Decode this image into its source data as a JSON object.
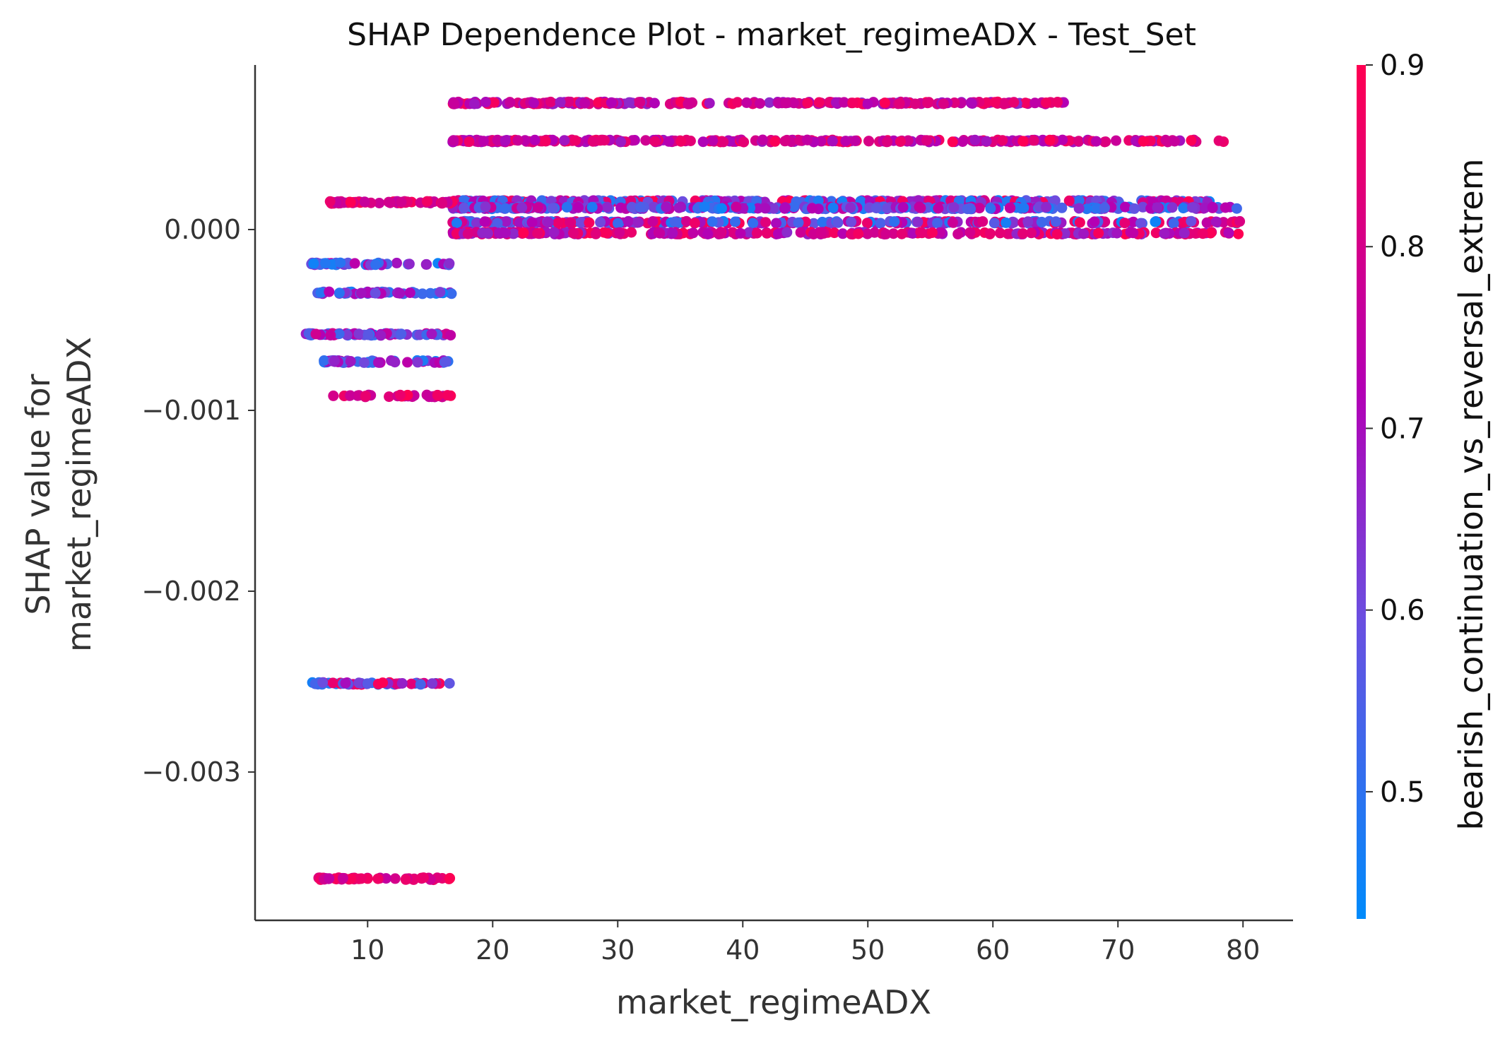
{
  "chart_data": {
    "type": "scatter",
    "title": "SHAP Dependence Plot - market_regimeADX - Test_Set",
    "xlabel": "market_regimeADX",
    "ylabel_lines": [
      "SHAP value for",
      "market_regimeADX"
    ],
    "xlim": [
      1,
      84
    ],
    "ylim": [
      -0.00382,
      0.00091
    ],
    "x_ticks": [
      10,
      20,
      30,
      40,
      50,
      60,
      70,
      80
    ],
    "x_tick_labels": [
      "10",
      "20",
      "30",
      "40",
      "50",
      "60",
      "70",
      "80"
    ],
    "y_ticks": [
      0.0,
      -0.001,
      -0.002,
      -0.003
    ],
    "y_tick_labels": [
      "0.000",
      "−0.001",
      "−0.002",
      "−0.003"
    ],
    "grid": false,
    "colorbar": {
      "label": "bearish_continuation_vs_reversal_extrem",
      "range": [
        0.43,
        0.9
      ],
      "ticks": [
        0.5,
        0.6,
        0.7,
        0.8,
        0.9
      ],
      "tick_labels": [
        "0.5",
        "0.6",
        "0.7",
        "0.8",
        "0.9"
      ],
      "color_low": "#008bfb",
      "color_high": "#ff0052"
    },
    "series": [
      {
        "x_range": [
          16.8,
          65.8
        ],
        "y": 0.0007,
        "color_range": [
          0.65,
          0.9
        ],
        "approx_points": 240
      },
      {
        "x_range": [
          16.8,
          78.5
        ],
        "y": 0.00049,
        "color_range": [
          0.68,
          0.9
        ],
        "approx_points": 280
      },
      {
        "x_range": [
          16.8,
          77.5
        ],
        "y": 0.000155,
        "color_range": [
          0.45,
          0.9
        ],
        "approx_points": 320
      },
      {
        "x_range": [
          16.8,
          79.8
        ],
        "y": 0.00012,
        "color_range": [
          0.45,
          0.78
        ],
        "approx_points": 320
      },
      {
        "x_range": [
          16.8,
          79.8
        ],
        "y": 4e-05,
        "color_range": [
          0.45,
          0.9
        ],
        "approx_points": 300
      },
      {
        "x_range": [
          16.8,
          79.8
        ],
        "y": -2e-05,
        "color_range": [
          0.65,
          0.9
        ],
        "approx_points": 280
      },
      {
        "x_range": [
          7.0,
          16.8
        ],
        "y": 0.00015,
        "color_range": [
          0.75,
          0.9
        ],
        "approx_points": 60
      },
      {
        "x_range": [
          5.5,
          16.8
        ],
        "y": -0.00019,
        "color_range": [
          0.45,
          0.75
        ],
        "approx_points": 55
      },
      {
        "x_range": [
          6.0,
          16.8
        ],
        "y": -0.00035,
        "color_range": [
          0.45,
          0.75
        ],
        "approx_points": 50
      },
      {
        "x_range": [
          5.0,
          16.8
        ],
        "y": -0.00058,
        "color_range": [
          0.45,
          0.8
        ],
        "approx_points": 60
      },
      {
        "x_range": [
          6.5,
          16.8
        ],
        "y": -0.00073,
        "color_range": [
          0.45,
          0.75
        ],
        "approx_points": 55
      },
      {
        "x_range": [
          7.0,
          16.8
        ],
        "y": -0.00092,
        "color_range": [
          0.75,
          0.9
        ],
        "approx_points": 35
      },
      {
        "x_range": [
          5.5,
          16.8
        ],
        "y": -0.00251,
        "color_range": [
          0.45,
          0.9
        ],
        "approx_points": 55
      },
      {
        "x_range": [
          6.0,
          16.8
        ],
        "y": -0.00359,
        "color_range": [
          0.75,
          0.9
        ],
        "approx_points": 50
      }
    ]
  }
}
